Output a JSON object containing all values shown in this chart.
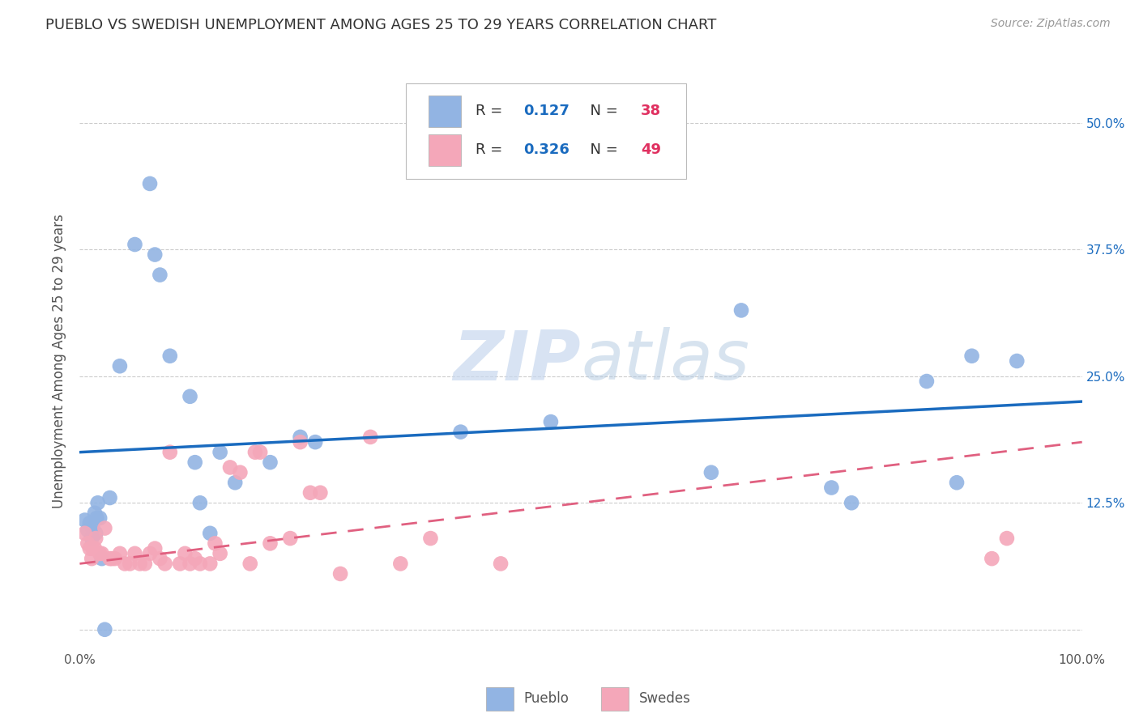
{
  "title": "PUEBLO VS SWEDISH UNEMPLOYMENT AMONG AGES 25 TO 29 YEARS CORRELATION CHART",
  "source_text": "Source: ZipAtlas.com",
  "ylabel": "Unemployment Among Ages 25 to 29 years",
  "xlim": [
    0.0,
    1.0
  ],
  "ylim": [
    -0.02,
    0.55
  ],
  "xticks": [
    0.0,
    0.125,
    0.25,
    0.375,
    0.5,
    0.625,
    0.75,
    0.875,
    1.0
  ],
  "xticklabels": [
    "0.0%",
    "",
    "",
    "",
    "",
    "",
    "",
    "",
    "100.0%"
  ],
  "yticks_right": [
    0.0,
    0.125,
    0.25,
    0.375,
    0.5
  ],
  "yticklabels_right": [
    "",
    "12.5%",
    "25.0%",
    "37.5%",
    "50.0%"
  ],
  "pueblo_color": "#92b4e3",
  "swedes_color": "#f4a7b9",
  "pueblo_line_color": "#1a6bbf",
  "swedes_line_color": "#e06080",
  "legend_R_color": "#1a6bbf",
  "legend_N_color": "#e03060",
  "pueblo_R": "0.127",
  "pueblo_N": "38",
  "swedes_R": "0.326",
  "swedes_N": "49",
  "watermark_zip": "ZIP",
  "watermark_atlas": "atlas",
  "pueblo_scatter_x": [
    0.005,
    0.008,
    0.01,
    0.012,
    0.013,
    0.015,
    0.016,
    0.017,
    0.018,
    0.02,
    0.022,
    0.025,
    0.03,
    0.04,
    0.055,
    0.07,
    0.075,
    0.08,
    0.09,
    0.11,
    0.115,
    0.12,
    0.13,
    0.14,
    0.155,
    0.19,
    0.22,
    0.235,
    0.38,
    0.47,
    0.63,
    0.66,
    0.75,
    0.77,
    0.845,
    0.875,
    0.89,
    0.935
  ],
  "pueblo_scatter_y": [
    0.108,
    0.098,
    0.105,
    0.09,
    0.1,
    0.115,
    0.095,
    0.11,
    0.125,
    0.11,
    0.07,
    0.0,
    0.13,
    0.26,
    0.38,
    0.44,
    0.37,
    0.35,
    0.27,
    0.23,
    0.165,
    0.125,
    0.095,
    0.175,
    0.145,
    0.165,
    0.19,
    0.185,
    0.195,
    0.205,
    0.155,
    0.315,
    0.14,
    0.125,
    0.245,
    0.145,
    0.27,
    0.265
  ],
  "swedes_scatter_x": [
    0.005,
    0.008,
    0.01,
    0.012,
    0.013,
    0.015,
    0.016,
    0.02,
    0.022,
    0.025,
    0.03,
    0.032,
    0.035,
    0.04,
    0.045,
    0.05,
    0.055,
    0.06,
    0.065,
    0.07,
    0.075,
    0.08,
    0.085,
    0.09,
    0.1,
    0.105,
    0.11,
    0.115,
    0.12,
    0.13,
    0.135,
    0.14,
    0.15,
    0.16,
    0.17,
    0.175,
    0.18,
    0.19,
    0.21,
    0.22,
    0.23,
    0.24,
    0.26,
    0.29,
    0.32,
    0.35,
    0.42,
    0.91,
    0.925
  ],
  "swedes_scatter_y": [
    0.095,
    0.085,
    0.08,
    0.07,
    0.08,
    0.08,
    0.09,
    0.075,
    0.075,
    0.1,
    0.07,
    0.07,
    0.07,
    0.075,
    0.065,
    0.065,
    0.075,
    0.065,
    0.065,
    0.075,
    0.08,
    0.07,
    0.065,
    0.175,
    0.065,
    0.075,
    0.065,
    0.07,
    0.065,
    0.065,
    0.085,
    0.075,
    0.16,
    0.155,
    0.065,
    0.175,
    0.175,
    0.085,
    0.09,
    0.185,
    0.135,
    0.135,
    0.055,
    0.19,
    0.065,
    0.09,
    0.065,
    0.07,
    0.09
  ],
  "pueblo_trendline_x": [
    0.0,
    1.0
  ],
  "pueblo_trendline_y": [
    0.175,
    0.225
  ],
  "swedes_trendline_x": [
    0.0,
    1.0
  ],
  "swedes_trendline_y": [
    0.065,
    0.185
  ],
  "background_color": "#ffffff",
  "grid_color": "#cccccc"
}
